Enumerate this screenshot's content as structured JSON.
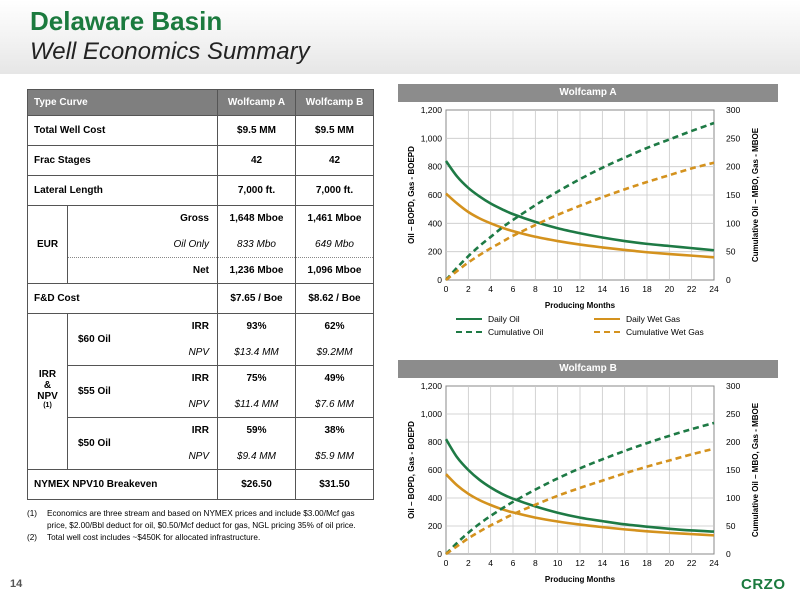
{
  "header": {
    "title": "Delaware Basin",
    "subtitle": "Well Economics Summary"
  },
  "table": {
    "col_header": [
      "Type Curve",
      "Wolfcamp A",
      "Wolfcamp B"
    ],
    "total_well_cost": {
      "label": "Total Well Cost",
      "a": "$9.5 MM",
      "b": "$9.5 MM"
    },
    "frac_stages": {
      "label": "Frac Stages",
      "a": "42",
      "b": "42"
    },
    "lateral_length": {
      "label": "Lateral Length",
      "a": "7,000 ft.",
      "b": "7,000 ft."
    },
    "eur": {
      "label": "EUR",
      "gross": {
        "label": "Gross",
        "a": "1,648 Mboe",
        "b": "1,461 Mboe"
      },
      "oil_only": {
        "label": "Oil Only",
        "a": "833 Mbo",
        "b": "649 Mbo"
      },
      "net": {
        "label": "Net",
        "a": "1,236 Mboe",
        "b": "1,096 Mboe"
      }
    },
    "fd_cost": {
      "label": "F&D Cost",
      "a": "$7.65 / Boe",
      "b": "$8.62 / Boe"
    },
    "irr_npv": {
      "label_line1": "IRR",
      "label_line2": "&",
      "label_line3": "NPV",
      "label_sup": "(1)",
      "groups": [
        {
          "price": "$60 Oil",
          "irr_label": "IRR",
          "npv_label": "NPV",
          "irr_a": "93%",
          "irr_b": "62%",
          "npv_a": "$13.4 MM",
          "npv_b": "$9.2MM"
        },
        {
          "price": "$55 Oil",
          "irr_label": "IRR",
          "npv_label": "NPV",
          "irr_a": "75%",
          "irr_b": "49%",
          "npv_a": "$11.4 MM",
          "npv_b": "$7.6 MM"
        },
        {
          "price": "$50 Oil",
          "irr_label": "IRR",
          "npv_label": "NPV",
          "irr_a": "59%",
          "irr_b": "38%",
          "npv_a": "$9.4 MM",
          "npv_b": "$5.9 MM"
        }
      ]
    },
    "breakeven": {
      "label": "NYMEX NPV10 Breakeven",
      "a": "$26.50",
      "b": "$31.50"
    }
  },
  "footnotes": [
    {
      "num": "(1)",
      "text": "Economics are three stream and based on NYMEX prices and include $3.00/Mcf gas price, $2.00/Bbl deduct for oil, $0.50/Mcf deduct for gas, NGL pricing 35% of oil price."
    },
    {
      "num": "(2)",
      "text": "Total well cost includes ~$450K for allocated infrastructure."
    }
  ],
  "legend": {
    "daily_oil": "Daily Oil",
    "daily_wet_gas": "Daily Wet Gas",
    "cumulative_oil": "Cumulative Oil",
    "cumulative_wet_gas": "Cumulative Wet Gas"
  },
  "colors": {
    "oil": "#1e7a45",
    "gas": "#d4921e",
    "header_gray": "#8c8c8c",
    "brand_green": "#1b7a3e"
  },
  "chart_data": [
    {
      "type": "line",
      "title": "Wolfcamp A",
      "xlabel": "Producing Months",
      "ylabel": "Oil – BOPD, Gas - BOEPD",
      "y2label": "Cumulative Oil – MBO, Gas - MBOE",
      "xlim": [
        0,
        24
      ],
      "ylim": [
        0,
        1200
      ],
      "y2lim": [
        0,
        300
      ],
      "xticks": [
        0,
        2,
        4,
        6,
        8,
        10,
        12,
        14,
        16,
        18,
        20,
        22,
        24
      ],
      "yticks": [
        0,
        200,
        400,
        600,
        800,
        1000,
        1200
      ],
      "yticklabels": [
        "0",
        "200",
        "400",
        "600",
        "800",
        "1,000",
        "1,200"
      ],
      "y2ticks": [
        0,
        50,
        100,
        150,
        200,
        250,
        300
      ],
      "grid": true,
      "x": [
        0,
        1,
        2,
        3,
        4,
        5,
        6,
        8,
        10,
        12,
        14,
        16,
        18,
        20,
        22,
        24
      ],
      "series": [
        {
          "name": "Daily Oil",
          "axis": "left",
          "style": "solid",
          "color": "#1e7a45",
          "values": [
            840,
            730,
            650,
            590,
            540,
            500,
            465,
            410,
            365,
            330,
            300,
            275,
            255,
            240,
            225,
            210
          ]
        },
        {
          "name": "Daily Wet Gas",
          "axis": "left",
          "style": "solid",
          "color": "#d4921e",
          "values": [
            610,
            540,
            480,
            435,
            400,
            370,
            345,
            305,
            275,
            250,
            230,
            212,
            196,
            183,
            172,
            160
          ]
        },
        {
          "name": "Cumulative Oil",
          "axis": "right",
          "style": "dashed",
          "color": "#1e7a45",
          "values": [
            0,
            22,
            42,
            60,
            76,
            92,
            106,
            132,
            156,
            178,
            198,
            216,
            233,
            248,
            263,
            277
          ]
        },
        {
          "name": "Cumulative Wet Gas",
          "axis": "right",
          "style": "dashed",
          "color": "#d4921e",
          "values": [
            0,
            16,
            31,
            44,
            56,
            67,
            78,
            97,
            115,
            131,
            146,
            160,
            173,
            185,
            197,
            207
          ]
        }
      ]
    },
    {
      "type": "line",
      "title": "Wolfcamp B",
      "xlabel": "Producing Months",
      "ylabel": "Oil – BOPD, Gas - BOEPD",
      "y2label": "Cumulative Oil – MBO, Gas - MBOE",
      "xlim": [
        0,
        24
      ],
      "ylim": [
        0,
        1200
      ],
      "y2lim": [
        0,
        300
      ],
      "xticks": [
        0,
        2,
        4,
        6,
        8,
        10,
        12,
        14,
        16,
        18,
        20,
        22,
        24
      ],
      "yticks": [
        0,
        200,
        400,
        600,
        800,
        1000,
        1200
      ],
      "yticklabels": [
        "0",
        "200",
        "400",
        "600",
        "800",
        "1,000",
        "1,200"
      ],
      "y2ticks": [
        0,
        50,
        100,
        150,
        200,
        250,
        300
      ],
      "grid": true,
      "x": [
        0,
        1,
        2,
        3,
        4,
        5,
        6,
        8,
        10,
        12,
        14,
        16,
        18,
        20,
        22,
        24
      ],
      "series": [
        {
          "name": "Daily Oil",
          "axis": "left",
          "style": "solid",
          "color": "#1e7a45",
          "values": [
            820,
            690,
            600,
            530,
            475,
            430,
            395,
            340,
            295,
            260,
            235,
            212,
            195,
            180,
            168,
            160
          ]
        },
        {
          "name": "Daily Wet Gas",
          "axis": "left",
          "style": "solid",
          "color": "#d4921e",
          "values": [
            570,
            490,
            430,
            385,
            350,
            320,
            297,
            260,
            232,
            210,
            192,
            176,
            162,
            151,
            142,
            133
          ]
        },
        {
          "name": "Cumulative Oil",
          "axis": "right",
          "style": "dashed",
          "color": "#1e7a45",
          "values": [
            0,
            20,
            38,
            54,
            68,
            81,
            93,
            115,
            135,
            153,
            169,
            184,
            198,
            211,
            223,
            234
          ]
        },
        {
          "name": "Cumulative Wet Gas",
          "axis": "right",
          "style": "dashed",
          "color": "#d4921e",
          "values": [
            0,
            14,
            28,
            40,
            51,
            61,
            71,
            88,
            104,
            118,
            131,
            144,
            156,
            167,
            178,
            188
          ]
        }
      ]
    }
  ],
  "footer": {
    "page_number": "14",
    "logo": "CRZO"
  }
}
